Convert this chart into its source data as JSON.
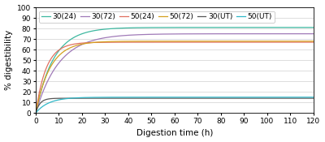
{
  "xlabel": "Digestion time (h)",
  "ylabel": "% digestibility",
  "xlim": [
    0,
    120
  ],
  "ylim": [
    0,
    100
  ],
  "xticks": [
    0,
    10,
    20,
    30,
    40,
    50,
    60,
    70,
    80,
    90,
    100,
    110,
    120
  ],
  "yticks": [
    0,
    10,
    20,
    30,
    40,
    50,
    60,
    70,
    80,
    90,
    100
  ],
  "series": [
    {
      "label": "30(24)",
      "color": "#3db8a0",
      "plateau": 81,
      "rate": 0.13
    },
    {
      "label": "30(72)",
      "color": "#a07ab8",
      "plateau": 75,
      "rate": 0.1
    },
    {
      "label": "50(24)",
      "color": "#e07060",
      "plateau": 67,
      "rate": 0.22
    },
    {
      "label": "50(72)",
      "color": "#d4a020",
      "plateau": 68,
      "rate": 0.16
    },
    {
      "label": "30(UT)",
      "color": "#555555",
      "plateau": 14,
      "rate": 0.55
    },
    {
      "label": "50(UT)",
      "color": "#30b8c8",
      "plateau": 15,
      "rate": 0.18
    }
  ],
  "legend_fontsize": 6.5,
  "axis_fontsize": 7.5,
  "tick_fontsize": 6.5,
  "background_color": "#ffffff",
  "grid_color": "#d0d0d0",
  "linewidth": 0.9
}
